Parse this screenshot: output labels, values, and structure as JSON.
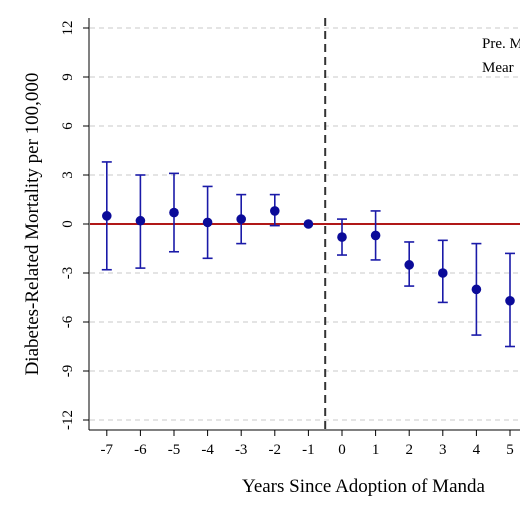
{
  "chart_data": {
    "type": "scatter",
    "title": "",
    "xlabel": "Years Since Adoption of Manda",
    "ylabel": "Diabetes-Related Mortality per 100,000",
    "x_ticks": [
      -7,
      -6,
      -5,
      -4,
      -3,
      -2,
      -1,
      0,
      1,
      2,
      3,
      4,
      5
    ],
    "y_ticks": [
      -12,
      -9,
      -6,
      -3,
      0,
      3,
      6,
      9,
      12
    ],
    "ylim": [
      -12.6,
      12.6
    ],
    "grid": "horizontal dashed",
    "reference_line_y": 0,
    "event_line_x": -0.5,
    "annotations": [
      "Pre. M",
      "Mear"
    ],
    "series": [
      {
        "x": [
          -7,
          -6,
          -5,
          -4,
          -3,
          -2,
          -1,
          0,
          1,
          2,
          3,
          4,
          5
        ],
        "values": [
          0.5,
          0.2,
          0.7,
          0.1,
          0.3,
          0.8,
          0.0,
          -0.8,
          -0.7,
          -2.5,
          -3.0,
          -4.0,
          -4.7
        ],
        "ci_lower": [
          -2.8,
          -2.7,
          -1.7,
          -2.1,
          -1.2,
          -0.1,
          0.0,
          -1.9,
          -2.2,
          -3.8,
          -4.8,
          -6.8,
          -7.5
        ],
        "ci_upper": [
          3.8,
          3.0,
          3.1,
          2.3,
          1.8,
          1.8,
          0.0,
          0.3,
          0.8,
          -1.1,
          -1.0,
          -1.2,
          -1.8
        ]
      }
    ],
    "colors": {
      "point": "#0b0b99",
      "ci_bar": "#1a1aa8",
      "zero_line": "#b01818",
      "event_line": "#333333",
      "grid": "#c8c8c8",
      "axis": "#000000"
    }
  }
}
